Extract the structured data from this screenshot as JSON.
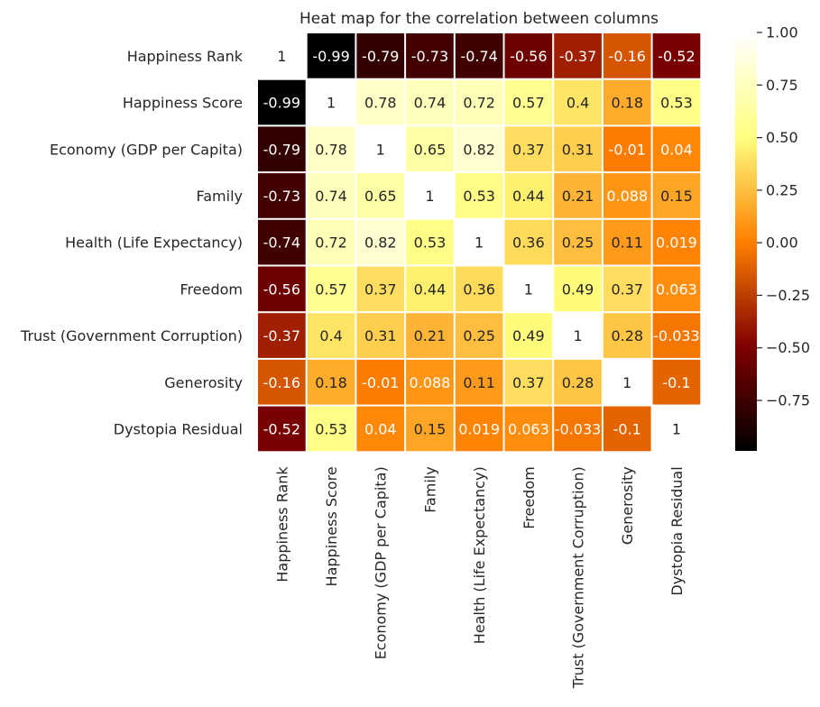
{
  "chart_data": {
    "type": "heatmap",
    "title": "Heat map for the correlation between columns",
    "row_labels": [
      "Happiness Rank",
      "Happiness Score",
      "Economy (GDP per Capita)",
      "Family",
      "Health (Life Expectancy)",
      "Freedom",
      "Trust (Government Corruption)",
      "Generosity",
      "Dystopia Residual"
    ],
    "col_labels": [
      "Happiness Rank",
      "Happiness Score",
      "Economy (GDP per Capita)",
      "Family",
      "Health (Life Expectancy)",
      "Freedom",
      "Trust (Government Corruption)",
      "Generosity",
      "Dystopia Residual"
    ],
    "values": [
      [
        1,
        -0.99,
        -0.79,
        -0.73,
        -0.74,
        -0.56,
        -0.37,
        -0.16,
        -0.52
      ],
      [
        -0.99,
        1,
        0.78,
        0.74,
        0.72,
        0.57,
        0.4,
        0.18,
        0.53
      ],
      [
        -0.79,
        0.78,
        1,
        0.65,
        0.82,
        0.37,
        0.31,
        -0.01,
        0.04
      ],
      [
        -0.73,
        0.74,
        0.65,
        1,
        0.53,
        0.44,
        0.21,
        0.088,
        0.15
      ],
      [
        -0.74,
        0.72,
        0.82,
        0.53,
        1,
        0.36,
        0.25,
        0.11,
        0.019
      ],
      [
        -0.56,
        0.57,
        0.37,
        0.44,
        0.36,
        1,
        0.49,
        0.37,
        0.063
      ],
      [
        -0.37,
        0.4,
        0.31,
        0.21,
        0.25,
        0.49,
        1,
        0.28,
        -0.033
      ],
      [
        -0.16,
        0.18,
        -0.01,
        0.088,
        0.11,
        0.37,
        0.28,
        1,
        -0.1
      ],
      [
        -0.52,
        0.53,
        0.04,
        0.15,
        0.019,
        0.063,
        -0.033,
        -0.1,
        1
      ]
    ],
    "cell_labels": [
      [
        "1",
        "-0.99",
        "-0.79",
        "-0.73",
        "-0.74",
        "-0.56",
        "-0.37",
        "-0.16",
        "-0.52"
      ],
      [
        "-0.99",
        "1",
        "0.78",
        "0.74",
        "0.72",
        "0.57",
        "0.4",
        "0.18",
        "0.53"
      ],
      [
        "-0.79",
        "0.78",
        "1",
        "0.65",
        "0.82",
        "0.37",
        "0.31",
        "-0.01",
        "0.04"
      ],
      [
        "-0.73",
        "0.74",
        "0.65",
        "1",
        "0.53",
        "0.44",
        "0.21",
        "0.088",
        "0.15"
      ],
      [
        "-0.74",
        "0.72",
        "0.82",
        "0.53",
        "1",
        "0.36",
        "0.25",
        "0.11",
        "0.019"
      ],
      [
        "-0.56",
        "0.57",
        "0.37",
        "0.44",
        "0.36",
        "1",
        "0.49",
        "0.37",
        "0.063"
      ],
      [
        "-0.37",
        "0.4",
        "0.31",
        "0.21",
        "0.25",
        "0.49",
        "1",
        "0.28",
        "-0.033"
      ],
      [
        "-0.16",
        "0.18",
        "-0.01",
        "0.088",
        "0.11",
        "0.37",
        "0.28",
        "1",
        "-0.1"
      ],
      [
        "-0.52",
        "0.53",
        "0.04",
        "0.15",
        "0.019",
        "0.063",
        "-0.033",
        "-0.1",
        "1"
      ]
    ],
    "colormap": "afmhot",
    "colorbar": {
      "range": [
        -0.99,
        1
      ],
      "ticks": [
        1.0,
        0.75,
        0.5,
        0.25,
        0.0,
        -0.25,
        -0.5,
        -0.75
      ],
      "tick_labels": [
        "1.00",
        "0.75",
        "0.50",
        "0.25",
        "0.00",
        "−0.25",
        "−0.50",
        "−0.75"
      ]
    },
    "cell_separator_color": "#ffffff"
  }
}
